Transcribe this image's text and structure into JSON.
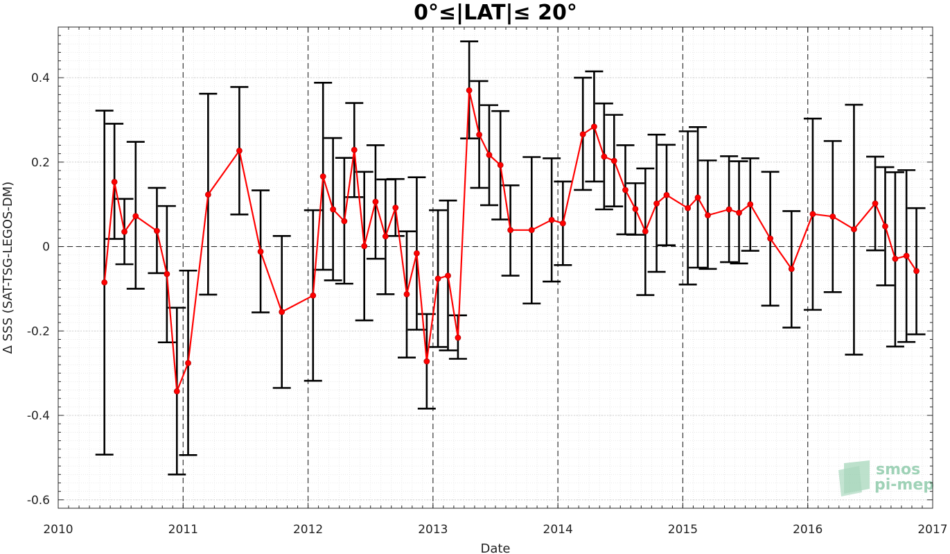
{
  "chart_data": {
    "type": "line",
    "title": "0°≤|LAT|≤ 20°",
    "xlabel": "Date",
    "ylabel": "Δ SSS (SAT-TSG-LEGOS-DM)",
    "xlim": [
      2010,
      2017
    ],
    "ylim": [
      -0.62,
      0.52
    ],
    "xticks": [
      "2010",
      "2011",
      "2012",
      "2013",
      "2014",
      "2015",
      "2016",
      "2017"
    ],
    "yticks": [
      {
        "value": -0.6,
        "label": "-0.6"
      },
      {
        "value": -0.4,
        "label": "-0.4"
      },
      {
        "value": -0.2,
        "label": "-0.2"
      },
      {
        "value": 0,
        "label": "0"
      },
      {
        "value": 0.2,
        "label": "0.2"
      },
      {
        "value": 0.4,
        "label": "0.4"
      }
    ],
    "year_lines": [
      2011,
      2012,
      2013,
      2014,
      2015,
      2016
    ],
    "grid": true,
    "series": [
      {
        "color": "#ff0000",
        "errorbar_color": "#000000",
        "points": [
          {
            "x": 2010.37,
            "y": -0.085,
            "lo": -0.493,
            "hi": 0.322
          },
          {
            "x": 2010.45,
            "y": 0.153,
            "lo": 0.018,
            "hi": 0.291
          },
          {
            "x": 2010.53,
            "y": 0.035,
            "lo": -0.042,
            "hi": 0.113
          },
          {
            "x": 2010.62,
            "y": 0.072,
            "lo": -0.1,
            "hi": 0.248
          },
          {
            "x": 2010.79,
            "y": 0.037,
            "lo": -0.063,
            "hi": 0.139
          },
          {
            "x": 2010.87,
            "y": -0.065,
            "lo": -0.227,
            "hi": 0.096
          },
          {
            "x": 2010.95,
            "y": -0.343,
            "lo": -0.54,
            "hi": -0.145
          },
          {
            "x": 2011.04,
            "y": -0.276,
            "lo": -0.494,
            "hi": -0.057
          },
          {
            "x": 2011.2,
            "y": 0.123,
            "lo": -0.114,
            "hi": 0.362
          },
          {
            "x": 2011.45,
            "y": 0.227,
            "lo": 0.076,
            "hi": 0.378
          },
          {
            "x": 2011.62,
            "y": -0.012,
            "lo": -0.156,
            "hi": 0.133
          },
          {
            "x": 2011.79,
            "y": -0.155,
            "lo": -0.335,
            "hi": 0.025
          },
          {
            "x": 2012.04,
            "y": -0.116,
            "lo": -0.318,
            "hi": 0.086
          },
          {
            "x": 2012.12,
            "y": 0.166,
            "lo": -0.055,
            "hi": 0.388
          },
          {
            "x": 2012.2,
            "y": 0.088,
            "lo": -0.08,
            "hi": 0.257
          },
          {
            "x": 2012.29,
            "y": 0.06,
            "lo": -0.088,
            "hi": 0.21
          },
          {
            "x": 2012.37,
            "y": 0.229,
            "lo": 0.117,
            "hi": 0.34
          },
          {
            "x": 2012.45,
            "y": 0.001,
            "lo": -0.175,
            "hi": 0.177
          },
          {
            "x": 2012.54,
            "y": 0.106,
            "lo": -0.029,
            "hi": 0.24
          },
          {
            "x": 2012.62,
            "y": 0.024,
            "lo": -0.113,
            "hi": 0.159
          },
          {
            "x": 2012.7,
            "y": 0.092,
            "lo": 0.025,
            "hi": 0.16
          },
          {
            "x": 2012.79,
            "y": -0.113,
            "lo": -0.263,
            "hi": 0.036
          },
          {
            "x": 2012.87,
            "y": -0.016,
            "lo": -0.197,
            "hi": 0.164
          },
          {
            "x": 2012.95,
            "y": -0.272,
            "lo": -0.384,
            "hi": -0.16
          },
          {
            "x": 2013.04,
            "y": -0.076,
            "lo": -0.238,
            "hi": 0.086
          },
          {
            "x": 2013.12,
            "y": -0.069,
            "lo": -0.246,
            "hi": 0.109
          },
          {
            "x": 2013.2,
            "y": -0.216,
            "lo": -0.266,
            "hi": -0.163
          },
          {
            "x": 2013.29,
            "y": 0.37,
            "lo": 0.256,
            "hi": 0.486
          },
          {
            "x": 2013.37,
            "y": 0.265,
            "lo": 0.139,
            "hi": 0.392
          },
          {
            "x": 2013.45,
            "y": 0.217,
            "lo": 0.098,
            "hi": 0.335
          },
          {
            "x": 2013.54,
            "y": 0.193,
            "lo": 0.064,
            "hi": 0.321
          },
          {
            "x": 2013.62,
            "y": 0.039,
            "lo": -0.069,
            "hi": 0.145
          },
          {
            "x": 2013.79,
            "y": 0.039,
            "lo": -0.135,
            "hi": 0.212
          },
          {
            "x": 2013.95,
            "y": 0.063,
            "lo": -0.083,
            "hi": 0.209
          },
          {
            "x": 2014.04,
            "y": 0.055,
            "lo": -0.044,
            "hi": 0.154
          },
          {
            "x": 2014.2,
            "y": 0.266,
            "lo": 0.134,
            "hi": 0.4
          },
          {
            "x": 2014.29,
            "y": 0.284,
            "lo": 0.154,
            "hi": 0.415
          },
          {
            "x": 2014.37,
            "y": 0.213,
            "lo": 0.088,
            "hi": 0.339
          },
          {
            "x": 2014.45,
            "y": 0.203,
            "lo": 0.095,
            "hi": 0.312
          },
          {
            "x": 2014.54,
            "y": 0.134,
            "lo": 0.029,
            "hi": 0.24
          },
          {
            "x": 2014.62,
            "y": 0.089,
            "lo": 0.028,
            "hi": 0.15
          },
          {
            "x": 2014.7,
            "y": 0.036,
            "lo": -0.115,
            "hi": 0.185
          },
          {
            "x": 2014.79,
            "y": 0.102,
            "lo": -0.06,
            "hi": 0.265
          },
          {
            "x": 2014.87,
            "y": 0.122,
            "lo": 0.003,
            "hi": 0.241
          },
          {
            "x": 2015.04,
            "y": 0.091,
            "lo": -0.09,
            "hi": 0.273
          },
          {
            "x": 2015.12,
            "y": 0.116,
            "lo": -0.05,
            "hi": 0.283
          },
          {
            "x": 2015.2,
            "y": 0.074,
            "lo": -0.053,
            "hi": 0.204
          },
          {
            "x": 2015.37,
            "y": 0.088,
            "lo": -0.037,
            "hi": 0.214
          },
          {
            "x": 2015.45,
            "y": 0.08,
            "lo": -0.04,
            "hi": 0.202
          },
          {
            "x": 2015.54,
            "y": 0.1,
            "lo": -0.01,
            "hi": 0.209
          },
          {
            "x": 2015.7,
            "y": 0.019,
            "lo": -0.14,
            "hi": 0.177
          },
          {
            "x": 2015.87,
            "y": -0.053,
            "lo": -0.192,
            "hi": 0.084
          },
          {
            "x": 2016.04,
            "y": 0.077,
            "lo": -0.15,
            "hi": 0.303
          },
          {
            "x": 2016.2,
            "y": 0.071,
            "lo": -0.108,
            "hi": 0.25
          },
          {
            "x": 2016.37,
            "y": 0.041,
            "lo": -0.256,
            "hi": 0.336
          },
          {
            "x": 2016.54,
            "y": 0.102,
            "lo": -0.009,
            "hi": 0.213
          },
          {
            "x": 2016.62,
            "y": 0.048,
            "lo": -0.092,
            "hi": 0.188
          },
          {
            "x": 2016.7,
            "y": -0.029,
            "lo": -0.237,
            "hi": 0.176
          },
          {
            "x": 2016.79,
            "y": -0.022,
            "lo": -0.226,
            "hi": 0.181
          },
          {
            "x": 2016.87,
            "y": -0.058,
            "lo": -0.208,
            "hi": 0.091
          }
        ]
      }
    ]
  },
  "logo": {
    "line1": "smos",
    "line2": "pi-mep"
  }
}
